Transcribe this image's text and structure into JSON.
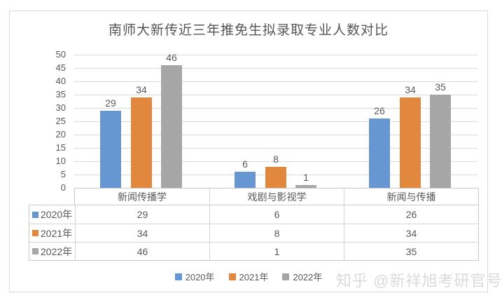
{
  "page": {
    "watermark": "知乎 @新祥旭考研官号"
  },
  "chart_data": {
    "type": "bar",
    "title": "南师大新传近三年推免生拟录取专业人数对比",
    "categories": [
      "新闻传播学",
      "戏剧与影视学",
      "新闻与传播"
    ],
    "series": [
      {
        "name": "2020年",
        "color": "#6697d3",
        "values": [
          29,
          6,
          26
        ]
      },
      {
        "name": "2021年",
        "color": "#e1883e",
        "values": [
          34,
          8,
          34
        ]
      },
      {
        "name": "2022年",
        "color": "#a6a6a6",
        "values": [
          46,
          1,
          35
        ]
      }
    ],
    "xlabel": "",
    "ylabel": "",
    "ylim": [
      0,
      50
    ],
    "ytick_step": 5,
    "grid": true,
    "legend_position": "bottom",
    "data_table_shown": true,
    "colors": {
      "axis_text": "#595959",
      "gridline": "#d9d9d9",
      "table_border": "#c9c9c9",
      "title_text": "#555555",
      "watermark_text": "#dadada"
    }
  }
}
